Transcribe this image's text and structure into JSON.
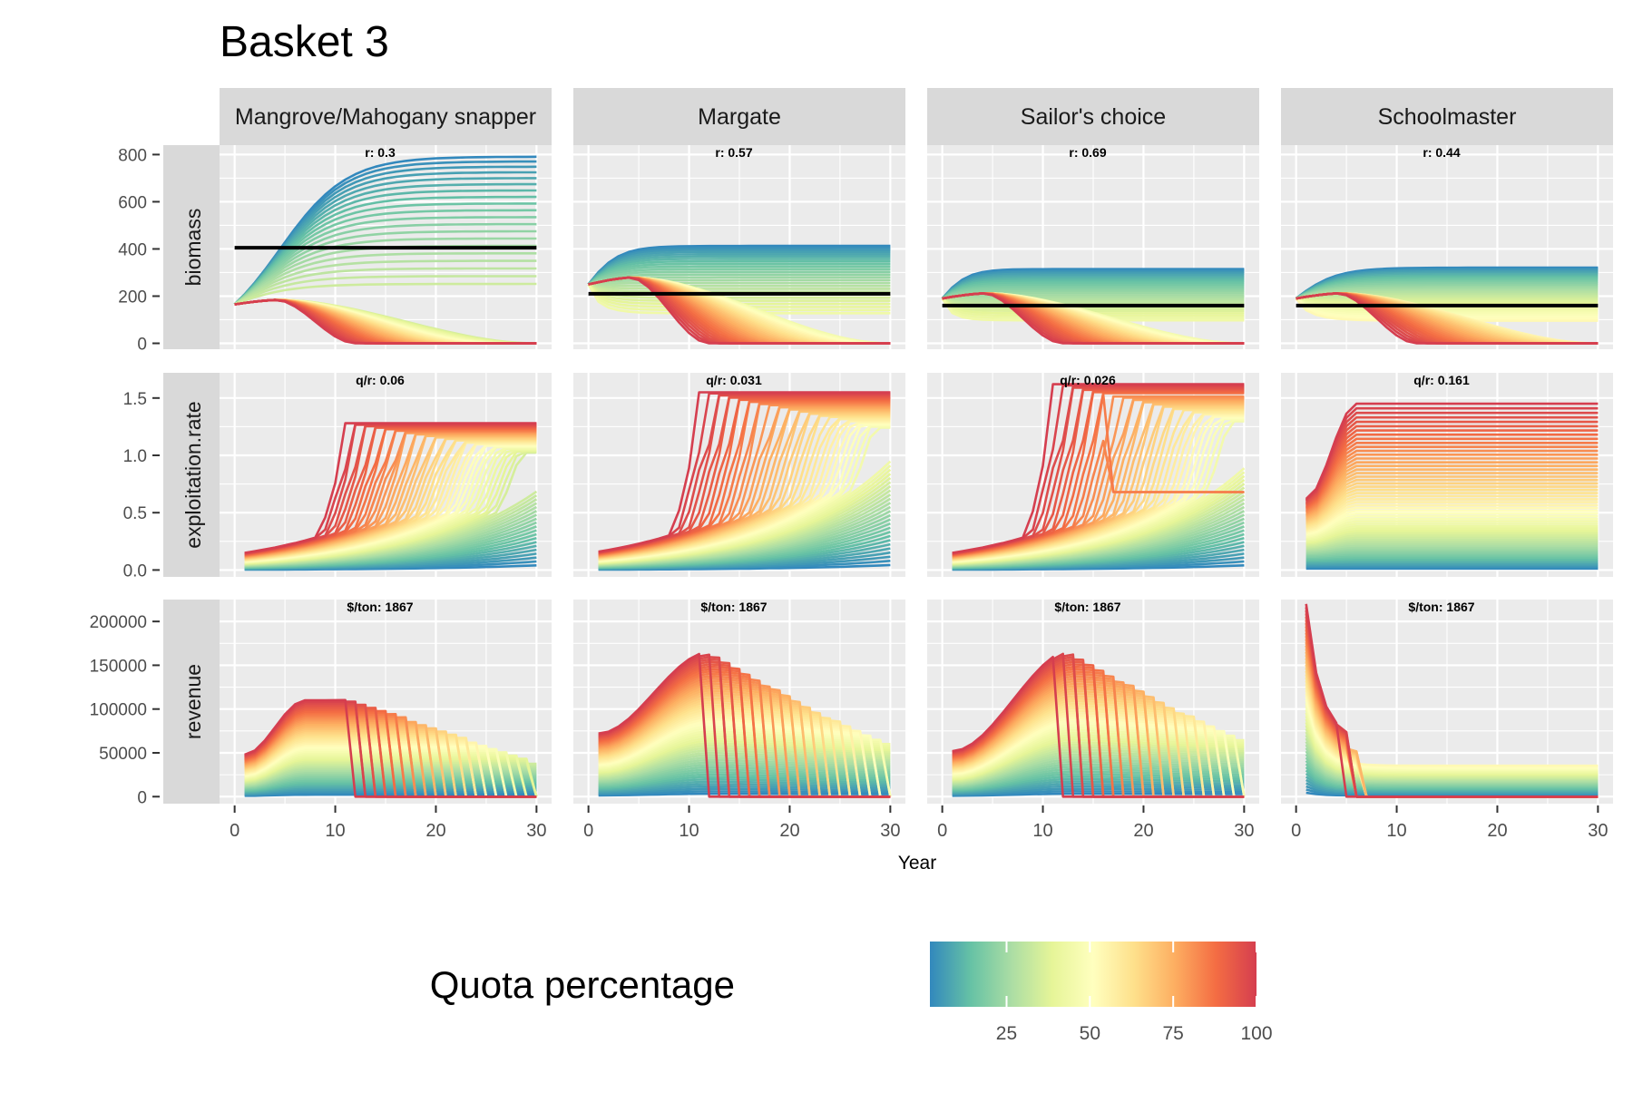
{
  "chart_data": {
    "type": "line",
    "title": "Basket 3",
    "xlabel": "Year",
    "legend_title": "Quota percentage",
    "legend_ticks": [
      25,
      50,
      75,
      100
    ],
    "legend_placement": "bottom",
    "colorscale": [
      "#3288bd",
      "#66c2a5",
      "#abdda4",
      "#e6f598",
      "#ffffbf",
      "#fee08b",
      "#fdae61",
      "#f46d43",
      "#d53e4f"
    ],
    "grid": true,
    "xlim": [
      0,
      30
    ],
    "x_ticks": [
      0,
      10,
      20,
      30
    ],
    "rows": [
      {
        "label": "biomass",
        "ylim": [
          0,
          800
        ],
        "ticks": [
          0,
          200,
          400,
          600,
          800
        ]
      },
      {
        "label": "exploitation.rate",
        "ylim": [
          0,
          1.5
        ],
        "ticks": [
          0.0,
          0.5,
          1.0,
          1.5
        ],
        "tick_labels": [
          "0.0",
          "0.5",
          "1.0",
          "1.5"
        ]
      },
      {
        "label": "revenue",
        "ylim": [
          0,
          200000
        ],
        "ticks": [
          0,
          50000,
          100000,
          150000,
          200000
        ]
      }
    ],
    "species": [
      {
        "name": "Mangrove/Mahogany snapper",
        "r_label": "r:  0.3",
        "qr_label": "q/r:  0.06",
        "price_label": "$/ton:  1867",
        "biomass": {
          "b0": 165,
          "K": 810,
          "r": 0.3,
          "reference_line": 405,
          "collapse_quota_pct": 35
        },
        "exploitation": {
          "start_max": 0.15,
          "peak": 1.28,
          "collapse_start_year": 12
        },
        "revenue": {
          "start_max": 48000,
          "peak": 110000,
          "peak_year": 6,
          "final_max": 112000,
          "collapse_start_year": 13
        }
      },
      {
        "name": "Margate",
        "r_label": "r:  0.57",
        "qr_label": "q/r:  0.031",
        "price_label": "$/ton:  1867",
        "biomass": {
          "b0": 250,
          "K": 420,
          "r": 0.57,
          "reference_line": 210,
          "collapse_quota_pct": 45
        },
        "exploitation": {
          "start_max": 0.16,
          "peak": 1.55,
          "collapse_start_year": 12
        },
        "revenue": {
          "start_max": 72000,
          "peak": 165000,
          "peak_year": 11,
          "final_max": 138000,
          "collapse_start_year": 12
        }
      },
      {
        "name": "Sailor's choice",
        "r_label": "r:  0.69",
        "qr_label": "q/r:  0.026",
        "price_label": "$/ton:  1867",
        "biomass": {
          "b0": 190,
          "K": 320,
          "r": 0.69,
          "reference_line": 160,
          "collapse_quota_pct": 45
        },
        "exploitation": {
          "start_max": 0.15,
          "peak": 1.62,
          "collapse_start_year": 12,
          "plateau": 0.68
        },
        "revenue": {
          "start_max": 52000,
          "peak": 168000,
          "peak_year": 12,
          "final_max": 148000,
          "collapse_start_year": 12
        }
      },
      {
        "name": "Schoolmaster",
        "r_label": "r:  0.44",
        "qr_label": "q/r:  0.161",
        "price_label": "$/ton:  1867",
        "biomass": {
          "b0": 190,
          "K": 325,
          "r": 0.44,
          "reference_line": 160,
          "collapse_quota_pct": 55
        },
        "exploitation": {
          "start_max": 0.62,
          "peak": 1.45,
          "collapse_start_year": 5
        },
        "revenue": {
          "start_max": 220000,
          "peak": 220000,
          "peak_year": 1,
          "final_max": 66000,
          "collapse_start_year": 5
        }
      }
    ]
  }
}
